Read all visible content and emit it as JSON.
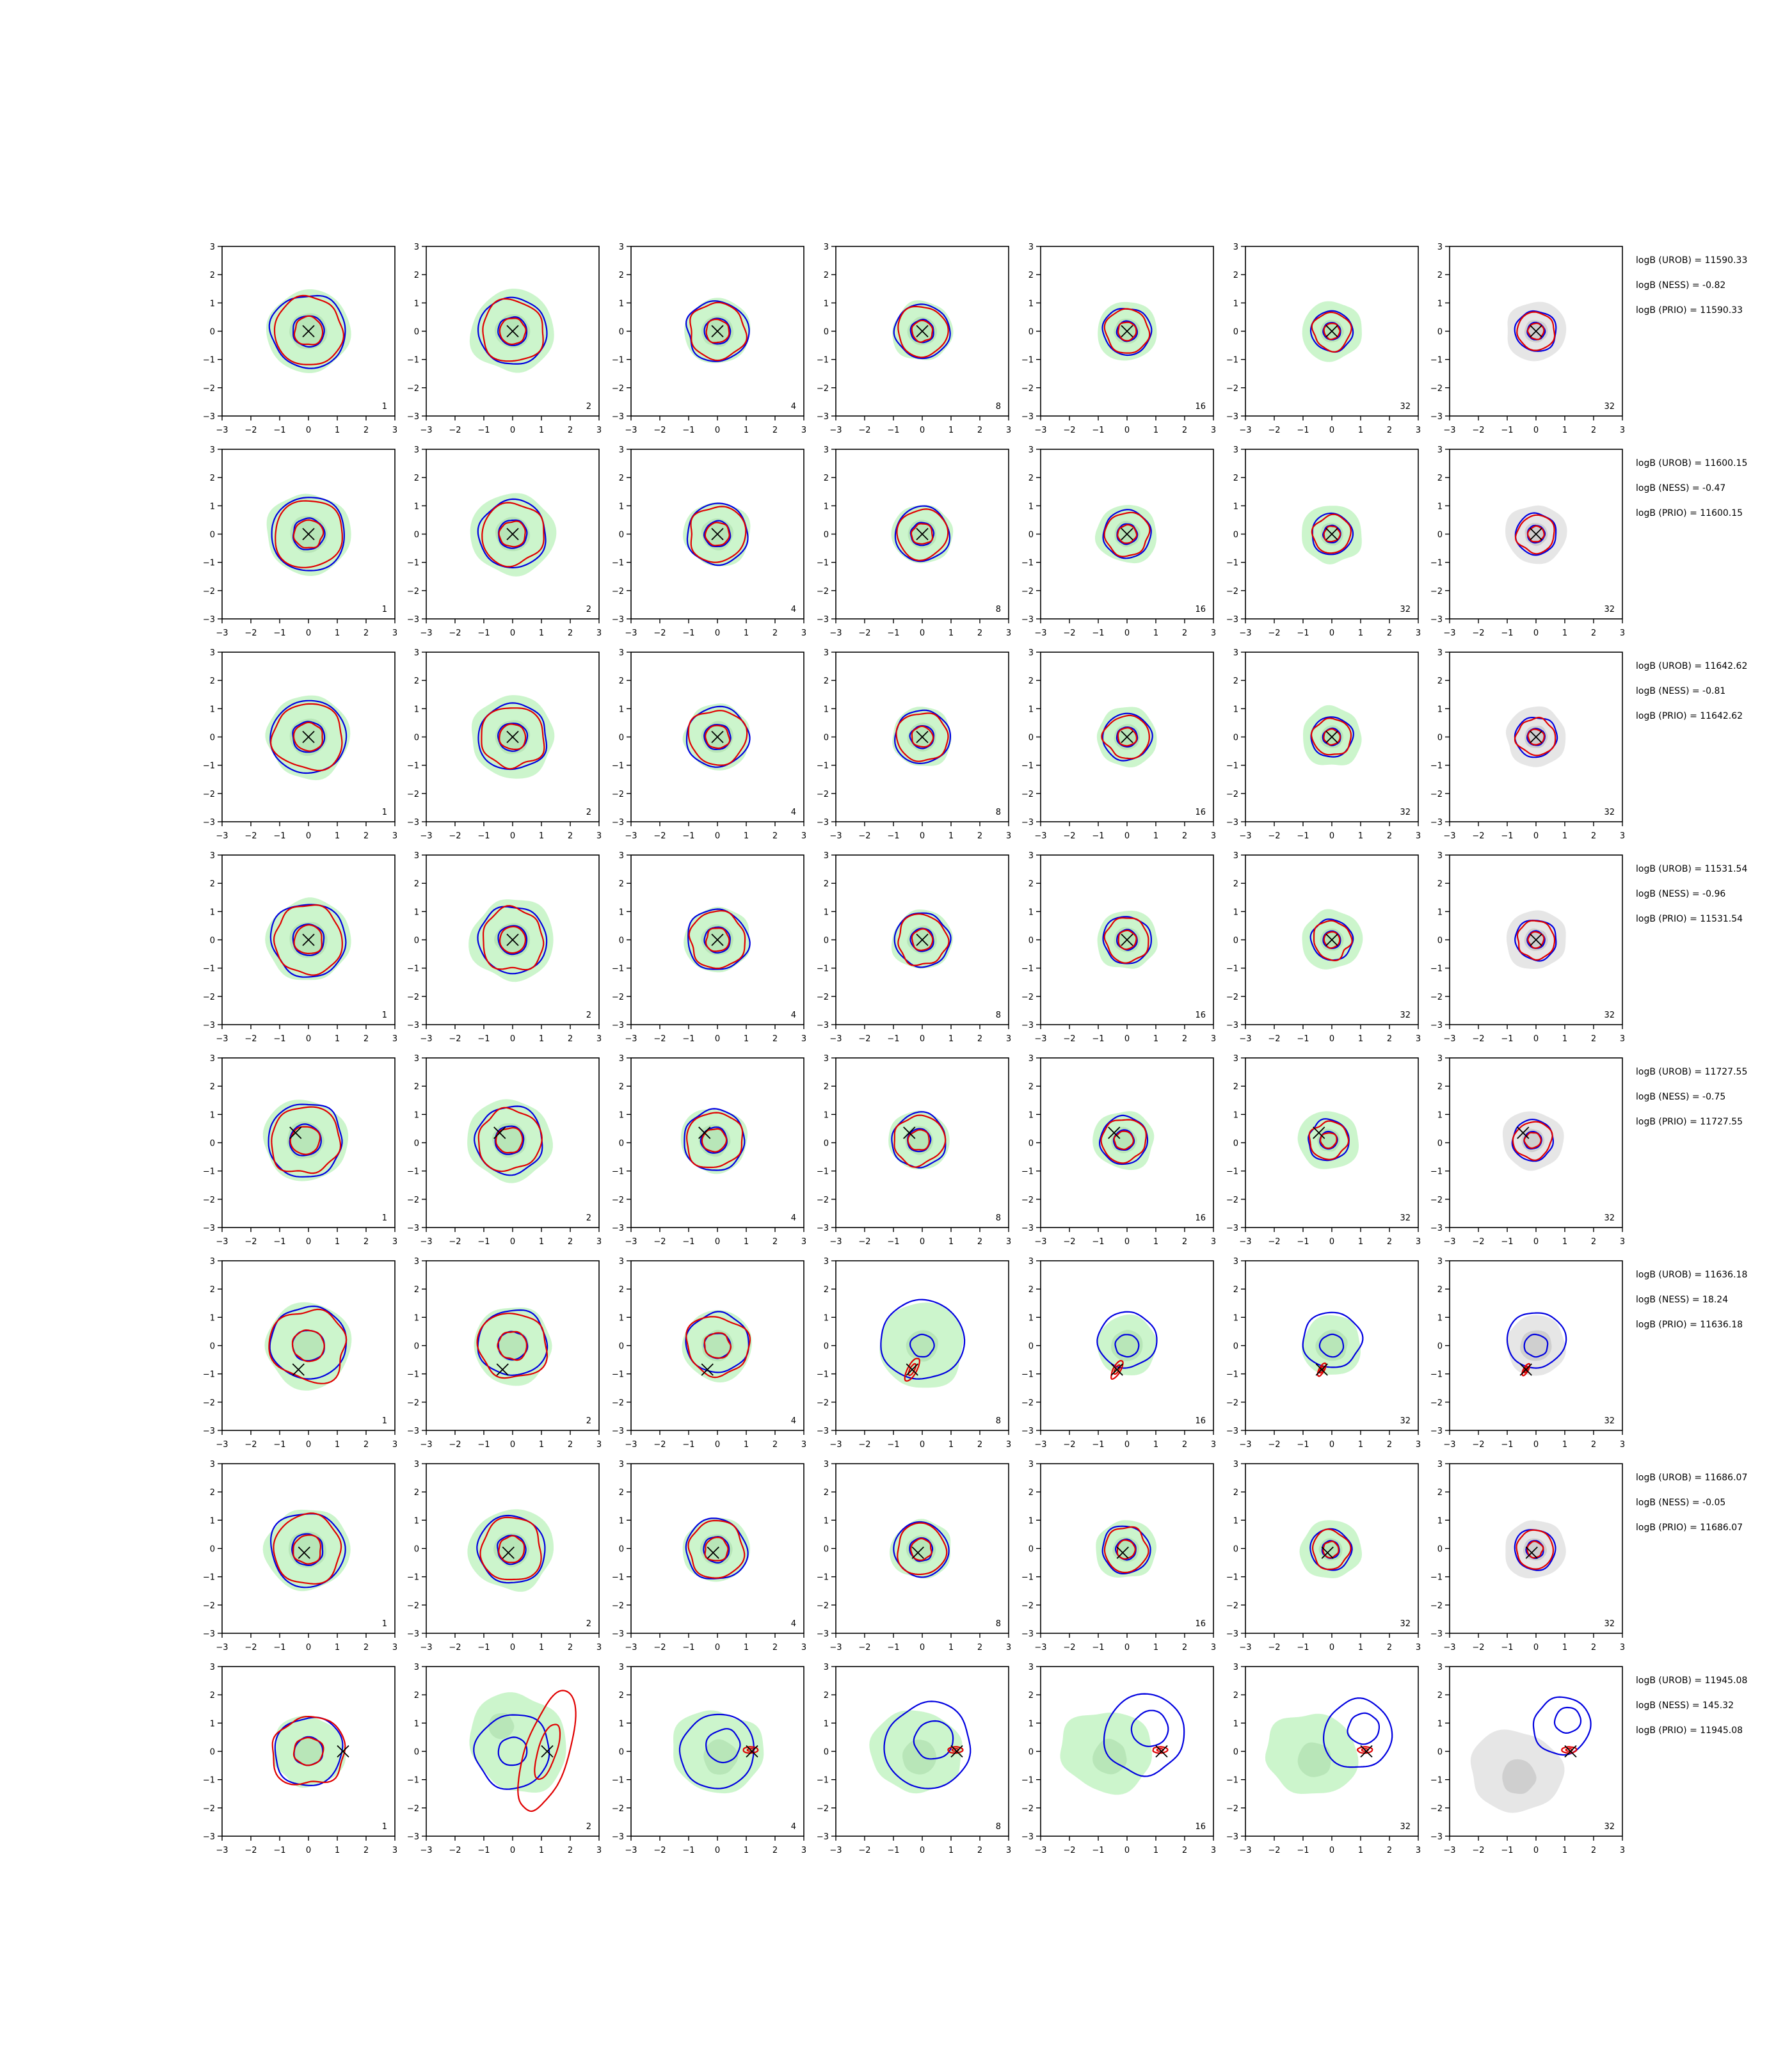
{
  "figure": {
    "cols": 7,
    "rows": 8,
    "axis_range": [
      -3,
      3
    ],
    "ticks": [
      -3,
      -2,
      -1,
      0,
      1,
      2,
      3
    ],
    "colors": {
      "fill_green": "#ccf5cc",
      "fill_green_dark": "#b8e6b8",
      "fill_grey": "#e6e6e6",
      "fill_grey_dark": "#cfcfcf",
      "contour_red": "#e00000",
      "contour_blue": "#0000e0",
      "marker": "#000000"
    }
  },
  "chart_data": {
    "type": "contour-grid",
    "panel_labels": [
      "1",
      "2",
      "4",
      "8",
      "16",
      "32",
      "32"
    ],
    "rows": [
      {
        "marker": [
          0,
          0
        ],
        "scenario": "center",
        "stats": [
          "logB (UROB) = 11590.33",
          "logB (NESS) = -0.82",
          "logB (PRIO) = 11590.33"
        ]
      },
      {
        "marker": [
          0,
          0
        ],
        "scenario": "center",
        "stats": [
          "logB (UROB) = 11600.15",
          "logB (NESS) = -0.47",
          "logB (PRIO) = 11600.15"
        ]
      },
      {
        "marker": [
          0,
          0
        ],
        "scenario": "center",
        "stats": [
          "logB (UROB) = 11642.62",
          "logB (NESS) = -0.81",
          "logB (PRIO) = 11642.62"
        ]
      },
      {
        "marker": [
          0,
          0
        ],
        "scenario": "center",
        "stats": [
          "logB (UROB) = 11531.54",
          "logB (NESS) = -0.96",
          "logB (PRIO) = 11531.54"
        ]
      },
      {
        "marker": [
          -0.45,
          0.35
        ],
        "scenario": "center",
        "stats": [
          "logB (UROB) = 11727.55",
          "logB (NESS) = -0.75",
          "logB (PRIO) = 11727.55"
        ]
      },
      {
        "marker": [
          -0.35,
          -0.85
        ],
        "scenario": "offset",
        "stats": [
          "logB (UROB) = 11636.18",
          "logB (NESS) = 18.24",
          "logB (PRIO) = 11636.18"
        ]
      },
      {
        "marker": [
          -0.15,
          -0.15
        ],
        "scenario": "center",
        "stats": [
          "logB (UROB) = 11686.07",
          "logB (NESS) = -0.05",
          "logB (PRIO) = 11686.07"
        ]
      },
      {
        "marker": [
          1.2,
          0
        ],
        "scenario": "far",
        "stats": [
          "logB (UROB) = 11945.08",
          "logB (NESS) = 145.32",
          "logB (PRIO) = 11945.08"
        ]
      }
    ]
  }
}
